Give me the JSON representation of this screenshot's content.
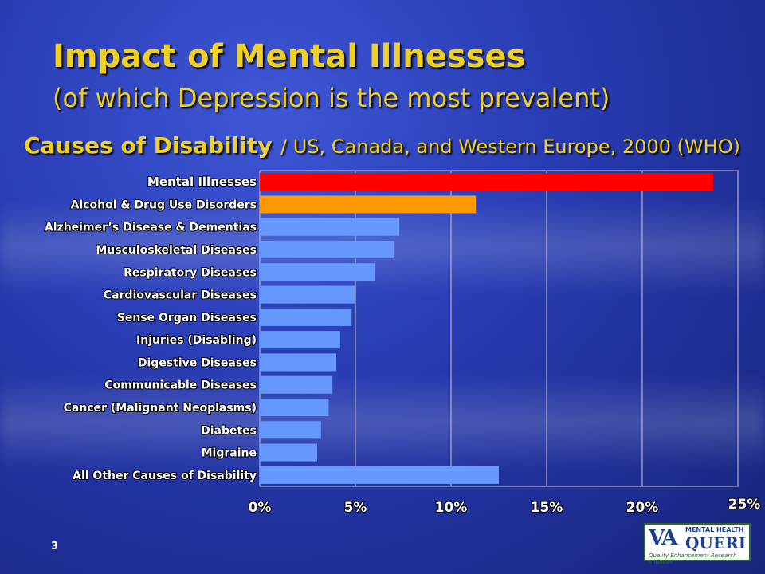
{
  "title": "Impact of Mental Illnesses",
  "subtitle": "(of which Depression is the most prevalent)",
  "causes_heading": "Causes of Disability",
  "causes_note": "/ US, Canada, and Western Europe, 2000 (WHO)",
  "slide_number": "3",
  "logo": {
    "va": "VA",
    "top": "MENTAL HEALTH",
    "main": "QUERI",
    "sub": "Quality Enhancement Research Initiative"
  },
  "colors": {
    "title": "#f0d020",
    "mental": "#ff0000",
    "alcohol": "#ff9900",
    "default_bar": "#6699ff"
  },
  "chart_data": {
    "type": "bar",
    "orientation": "horizontal",
    "categories": [
      "Mental Illnesses",
      "Alcohol & Drug Use Disorders",
      "Alzheimer’s Disease & Dementias",
      "Musculoskeletal Diseases",
      "Respiratory Diseases",
      "Cardiovascular Diseases",
      "Sense Organ Diseases",
      "Injuries (Disabling)",
      "Digestive Diseases",
      "Communicable Diseases",
      "Cancer (Malignant Neoplasms)",
      "Diabetes",
      "Migraine",
      "All Other Causes of Disability"
    ],
    "values": [
      23.7,
      11.3,
      7.3,
      7.0,
      6.0,
      5.0,
      4.8,
      4.2,
      4.0,
      3.8,
      3.6,
      3.2,
      3.0,
      12.5
    ],
    "bar_colors": [
      "#ff0000",
      "#ff9900",
      "#6699ff",
      "#6699ff",
      "#6699ff",
      "#6699ff",
      "#6699ff",
      "#6699ff",
      "#6699ff",
      "#6699ff",
      "#6699ff",
      "#6699ff",
      "#6699ff",
      "#6699ff"
    ],
    "xticks": [
      "0%",
      "5%",
      "10%",
      "15%",
      "20%",
      "25%"
    ],
    "xtick_values": [
      0,
      5,
      10,
      15,
      20,
      25
    ],
    "xlim": [
      0,
      25
    ],
    "grid": true,
    "legend": "none"
  }
}
